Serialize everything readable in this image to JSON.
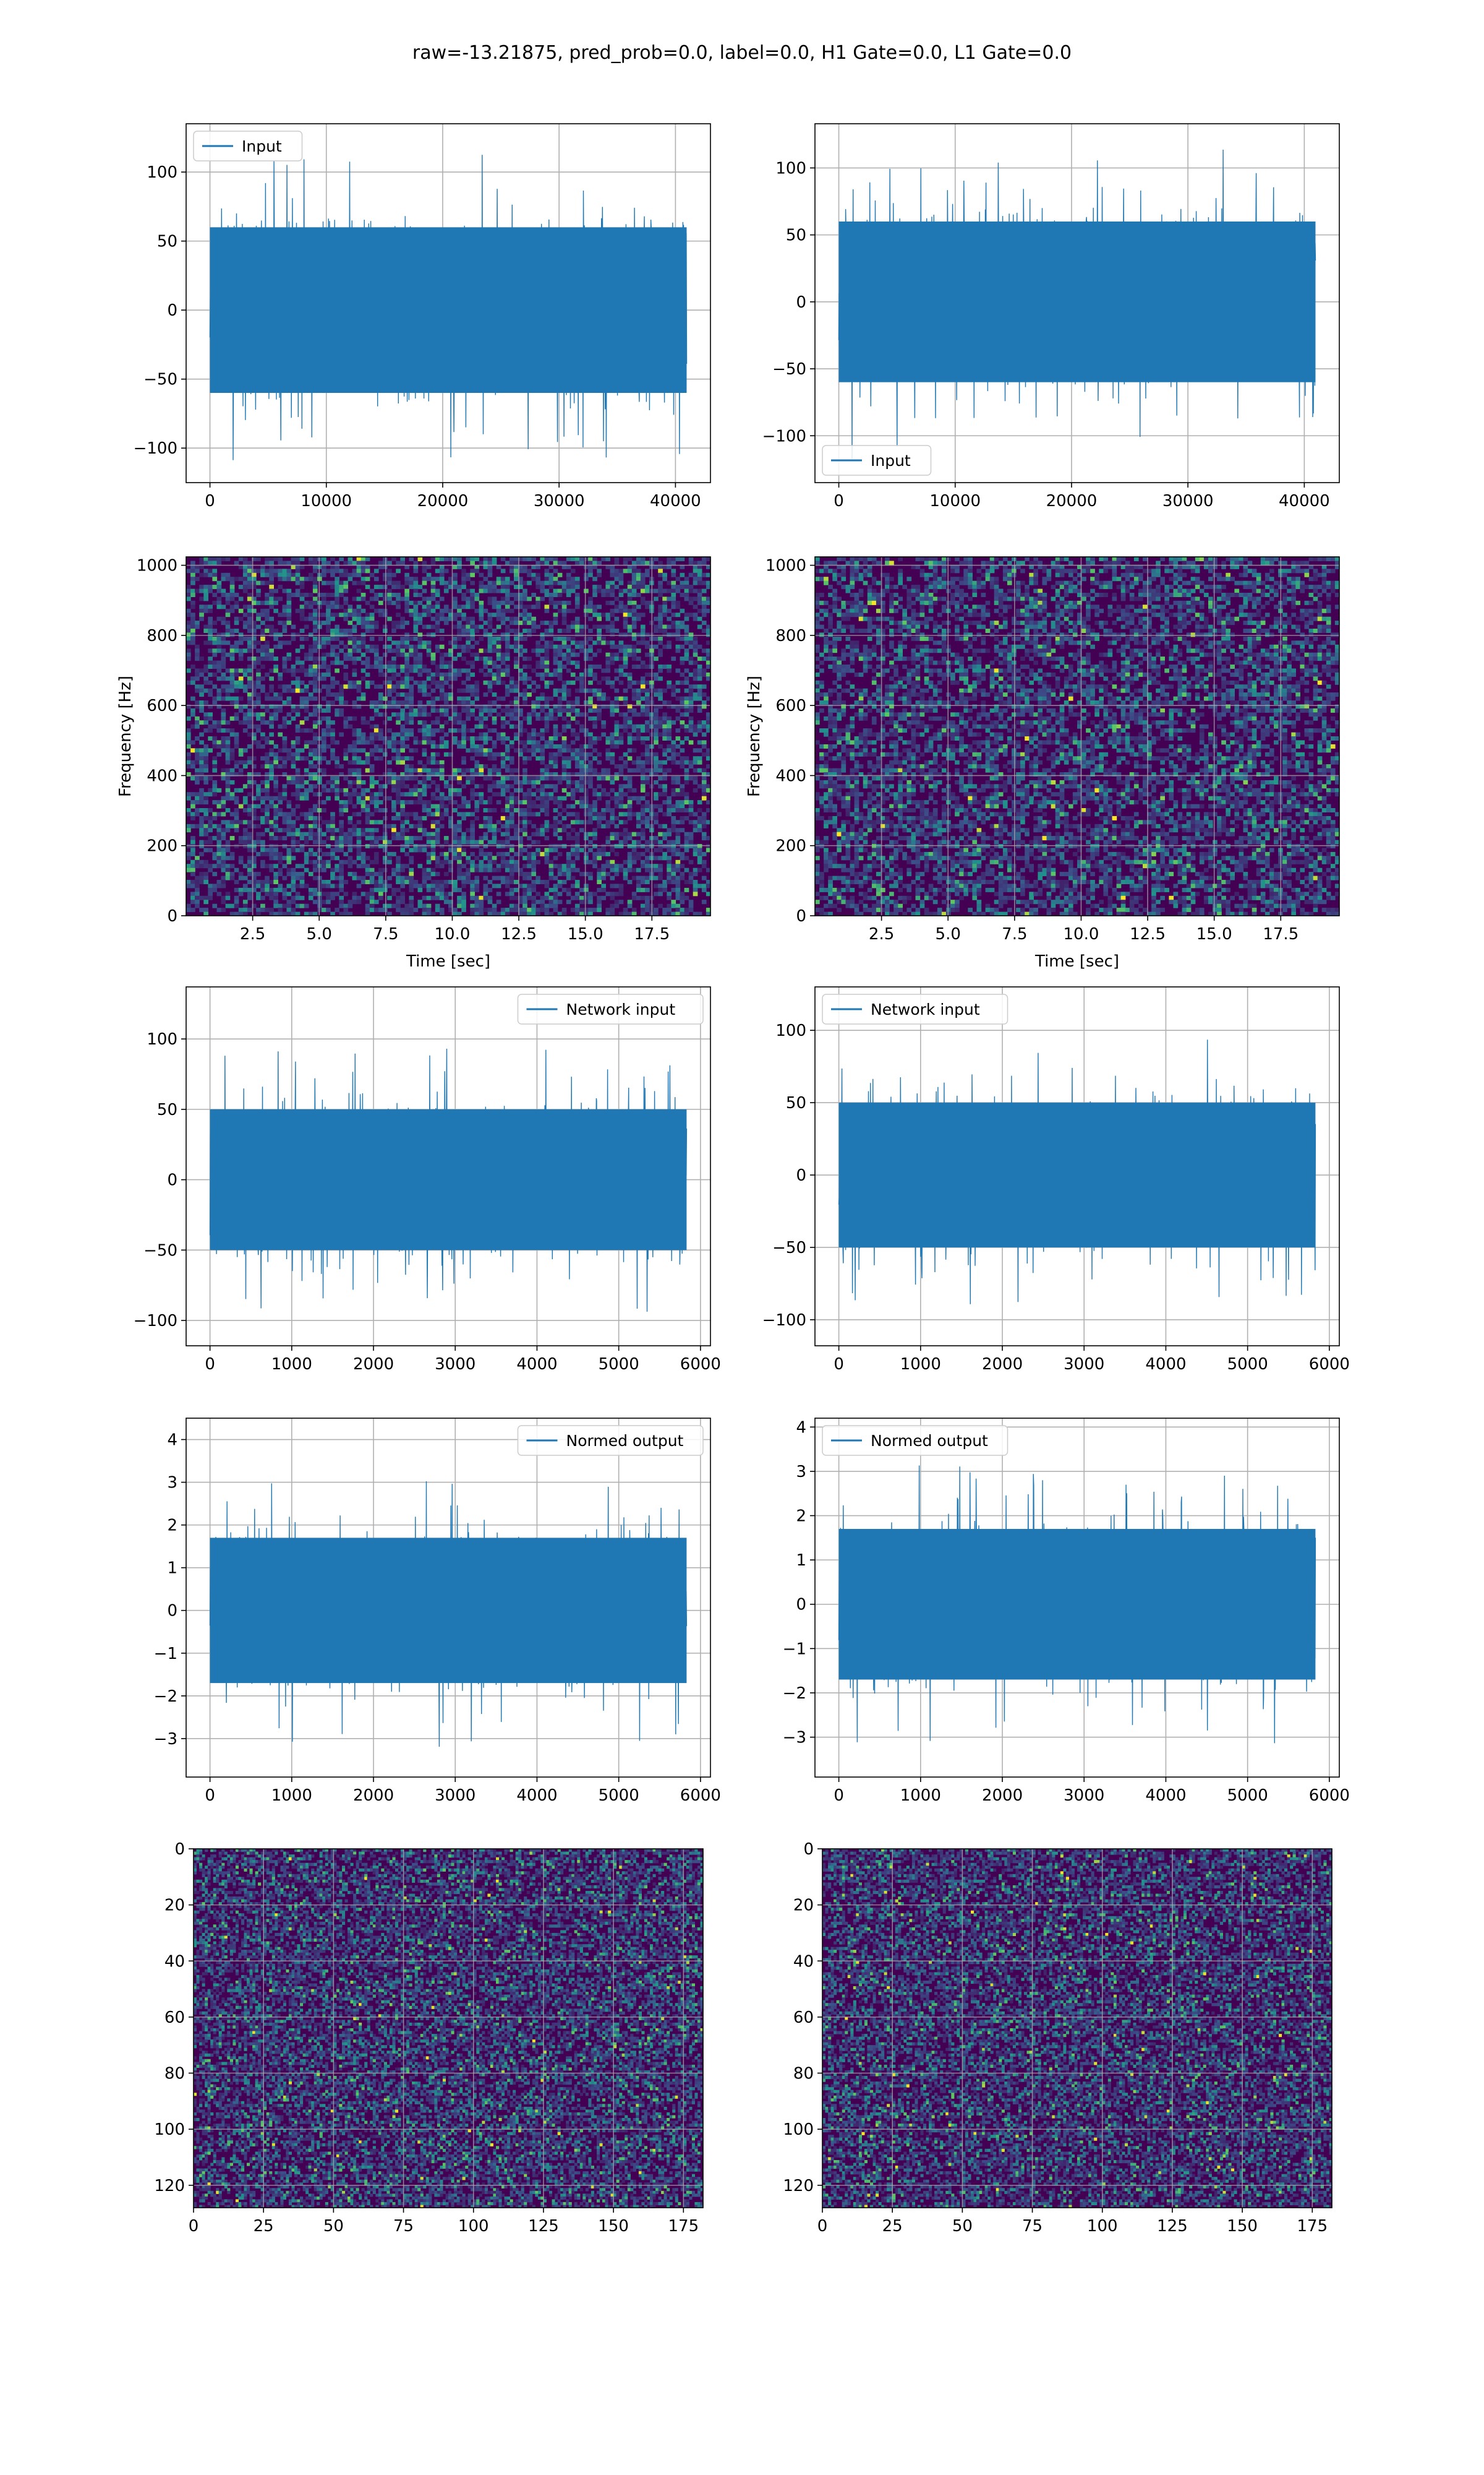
{
  "figure": {
    "title": "raw=-13.21875, pred_prob=0.0, label=0.0, H1 Gate=0.0, L1 Gate=0.0"
  },
  "colors": {
    "line": "#1f77b4",
    "grid": "#b0b0b0",
    "viridis_dark": "#440154",
    "viridis_low": "#3b2a7a",
    "viridis_mid": "#21918c",
    "viridis_high": "#5ec962",
    "viridis_top": "#fde725"
  },
  "chart_data": [
    {
      "id": "input-h1",
      "type": "line",
      "title": "",
      "xlabel": "",
      "ylabel": "",
      "series": [
        {
          "name": "Input",
          "style": "noise",
          "amplitude_core": 30,
          "amplitude_peak": 120
        }
      ],
      "x_range": [
        0,
        40960
      ],
      "xlim": [
        -2048,
        43008
      ],
      "ylim": [
        -125,
        135
      ],
      "xticks": [
        0,
        10000,
        20000,
        30000,
        40000
      ],
      "xtick_labels": [
        "0",
        "10000",
        "20000",
        "30000",
        "40000"
      ],
      "yticks": [
        -100,
        -50,
        0,
        50,
        100
      ],
      "ytick_labels": [
        "−100",
        "−50",
        "0",
        "50",
        "100"
      ],
      "legend": {
        "label": "Input",
        "position": "top-left"
      },
      "grid": true
    },
    {
      "id": "input-l1",
      "type": "line",
      "title": "",
      "xlabel": "",
      "ylabel": "",
      "series": [
        {
          "name": "Input",
          "style": "noise",
          "amplitude_core": 30,
          "amplitude_peak": 120
        }
      ],
      "x_range": [
        0,
        40960
      ],
      "xlim": [
        -2048,
        43008
      ],
      "ylim": [
        -135,
        133
      ],
      "xticks": [
        0,
        10000,
        20000,
        30000,
        40000
      ],
      "xtick_labels": [
        "0",
        "10000",
        "20000",
        "30000",
        "40000"
      ],
      "yticks": [
        -100,
        -50,
        0,
        50,
        100
      ],
      "ytick_labels": [
        "−100",
        "−50",
        "0",
        "50",
        "100"
      ],
      "legend": {
        "label": "Input",
        "position": "bottom-left"
      },
      "grid": true
    },
    {
      "id": "spectrogram-h1",
      "type": "heatmap",
      "title": "",
      "xlabel": "Time [sec]",
      "ylabel": "Frequency [Hz]",
      "xlim": [
        0,
        19.7
      ],
      "ylim": [
        0,
        1024
      ],
      "xticks": [
        2.5,
        5.0,
        7.5,
        10.0,
        12.5,
        15.0,
        17.5
      ],
      "xtick_labels": [
        "2.5",
        "5.0",
        "7.5",
        "10.0",
        "12.5",
        "15.0",
        "17.5"
      ],
      "yticks": [
        0,
        200,
        400,
        600,
        800,
        1000
      ],
      "ytick_labels": [
        "0",
        "200",
        "400",
        "600",
        "800",
        "1000"
      ],
      "colormap": "viridis",
      "grid": true
    },
    {
      "id": "spectrogram-l1",
      "type": "heatmap",
      "title": "",
      "xlabel": "Time [sec]",
      "ylabel": "Frequency [Hz]",
      "xlim": [
        0,
        19.7
      ],
      "ylim": [
        0,
        1024
      ],
      "xticks": [
        2.5,
        5.0,
        7.5,
        10.0,
        12.5,
        15.0,
        17.5
      ],
      "xtick_labels": [
        "2.5",
        "5.0",
        "7.5",
        "10.0",
        "12.5",
        "15.0",
        "17.5"
      ],
      "yticks": [
        0,
        200,
        400,
        600,
        800,
        1000
      ],
      "ytick_labels": [
        "0",
        "200",
        "400",
        "600",
        "800",
        "1000"
      ],
      "colormap": "viridis",
      "grid": true
    },
    {
      "id": "network-input-h1",
      "type": "line",
      "title": "",
      "xlabel": "",
      "ylabel": "",
      "series": [
        {
          "name": "Network input",
          "style": "noise",
          "amplitude_core": 25,
          "amplitude_peak": 128
        }
      ],
      "x_range": [
        0,
        5830
      ],
      "xlim": [
        -292,
        6122
      ],
      "ylim": [
        -118,
        137
      ],
      "xticks": [
        0,
        1000,
        2000,
        3000,
        4000,
        5000,
        6000
      ],
      "xtick_labels": [
        "0",
        "1000",
        "2000",
        "3000",
        "4000",
        "5000",
        "6000"
      ],
      "yticks": [
        -100,
        -50,
        0,
        50,
        100
      ],
      "ytick_labels": [
        "−100",
        "−50",
        "0",
        "50",
        "100"
      ],
      "legend": {
        "label": "Network input",
        "position": "top-right"
      },
      "grid": true
    },
    {
      "id": "network-input-l1",
      "type": "line",
      "title": "",
      "xlabel": "",
      "ylabel": "",
      "series": [
        {
          "name": "Network input",
          "style": "noise",
          "amplitude_core": 25,
          "amplitude_peak": 120
        }
      ],
      "x_range": [
        0,
        5830
      ],
      "xlim": [
        -292,
        6122
      ],
      "ylim": [
        -118,
        130
      ],
      "xticks": [
        0,
        1000,
        2000,
        3000,
        4000,
        5000,
        6000
      ],
      "xtick_labels": [
        "0",
        "1000",
        "2000",
        "3000",
        "4000",
        "5000",
        "6000"
      ],
      "yticks": [
        -100,
        -50,
        0,
        50,
        100
      ],
      "ytick_labels": [
        "−100",
        "−50",
        "0",
        "50",
        "100"
      ],
      "legend": {
        "label": "Network input",
        "position": "top-left"
      },
      "grid": true
    },
    {
      "id": "normed-output-h1",
      "type": "line",
      "title": "",
      "xlabel": "",
      "ylabel": "",
      "series": [
        {
          "name": "Normed output",
          "style": "noise",
          "amplitude_core": 0.85,
          "amplitude_peak": 4.2
        }
      ],
      "x_range": [
        0,
        5830
      ],
      "xlim": [
        -292,
        6122
      ],
      "ylim": [
        -3.9,
        4.5
      ],
      "xticks": [
        0,
        1000,
        2000,
        3000,
        4000,
        5000,
        6000
      ],
      "xtick_labels": [
        "0",
        "1000",
        "2000",
        "3000",
        "4000",
        "5000",
        "6000"
      ],
      "yticks": [
        -3,
        -2,
        -1,
        0,
        1,
        2,
        3,
        4
      ],
      "ytick_labels": [
        "−3",
        "−2",
        "−1",
        "0",
        "1",
        "2",
        "3",
        "4"
      ],
      "legend": {
        "label": "Normed output",
        "position": "top-right"
      },
      "grid": true
    },
    {
      "id": "normed-output-l1",
      "type": "line",
      "title": "",
      "xlabel": "",
      "ylabel": "",
      "series": [
        {
          "name": "Normed output",
          "style": "noise",
          "amplitude_core": 0.85,
          "amplitude_peak": 3.9
        }
      ],
      "x_range": [
        0,
        5830
      ],
      "xlim": [
        -292,
        6122
      ],
      "ylim": [
        -3.9,
        4.2
      ],
      "xticks": [
        0,
        1000,
        2000,
        3000,
        4000,
        5000,
        6000
      ],
      "xtick_labels": [
        "0",
        "1000",
        "2000",
        "3000",
        "4000",
        "5000",
        "6000"
      ],
      "yticks": [
        -3,
        -2,
        -1,
        0,
        1,
        2,
        3,
        4
      ],
      "ytick_labels": [
        "−3",
        "−2",
        "−1",
        "0",
        "1",
        "2",
        "3",
        "4"
      ],
      "legend": {
        "label": "Normed output",
        "position": "top-left"
      },
      "grid": true
    },
    {
      "id": "output-image-h1",
      "type": "heatmap",
      "title": "",
      "xlabel": "",
      "ylabel": "",
      "xlim": [
        0,
        182
      ],
      "ylim": [
        128,
        0
      ],
      "xticks": [
        0,
        25,
        50,
        75,
        100,
        125,
        150,
        175
      ],
      "xtick_labels": [
        "0",
        "25",
        "50",
        "75",
        "100",
        "125",
        "150",
        "175"
      ],
      "yticks": [
        0,
        20,
        40,
        60,
        80,
        100,
        120
      ],
      "ytick_labels": [
        "0",
        "20",
        "40",
        "60",
        "80",
        "100",
        "120"
      ],
      "colormap": "viridis",
      "grid": true
    },
    {
      "id": "output-image-l1",
      "type": "heatmap",
      "title": "",
      "xlabel": "",
      "ylabel": "",
      "xlim": [
        0,
        182
      ],
      "ylim": [
        128,
        0
      ],
      "xticks": [
        0,
        25,
        50,
        75,
        100,
        125,
        150,
        175
      ],
      "xtick_labels": [
        "0",
        "25",
        "50",
        "75",
        "100",
        "125",
        "150",
        "175"
      ],
      "yticks": [
        0,
        20,
        40,
        60,
        80,
        100,
        120
      ],
      "ytick_labels": [
        "0",
        "20",
        "40",
        "60",
        "80",
        "100",
        "120"
      ],
      "colormap": "viridis",
      "grid": true
    }
  ]
}
